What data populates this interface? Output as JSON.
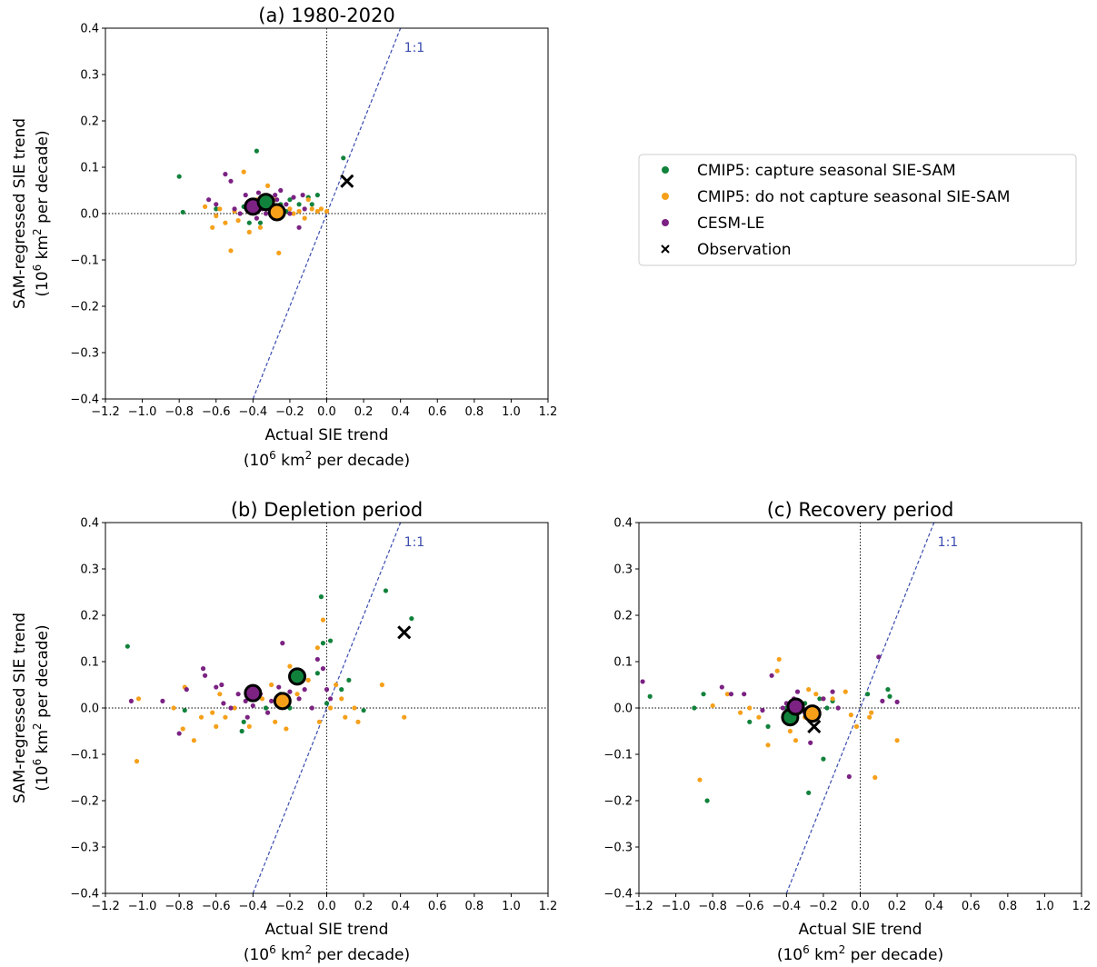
{
  "colors": {
    "cmip5_capture": "#11823b",
    "cmip5_not": "#f6a01a",
    "cesm": "#7b2283",
    "observation": "#000000",
    "one_to_one": "#3a4cb0"
  },
  "legend": {
    "items": [
      {
        "key": "cmip5_capture",
        "label": "CMIP5: capture seasonal SIE-SAM",
        "marker": "dot"
      },
      {
        "key": "cmip5_not",
        "label": "CMIP5: do not capture seasonal SIE-SAM",
        "marker": "dot"
      },
      {
        "key": "cesm",
        "label": "CESM-LE",
        "marker": "dot"
      },
      {
        "key": "observation",
        "label": "Observation",
        "marker": "cross"
      }
    ]
  },
  "axes_text": {
    "xlabel_line1": "Actual SIE trend",
    "xlabel_line2_prefix": "(10",
    "xlabel_sup": "6",
    "xlabel_line2_mid": " km",
    "xlabel_sup2": "2",
    "xlabel_line2_suffix": " per decade)",
    "ylabel_line1": "SAM-regressed SIE trend",
    "one_to_one_label": "1:1"
  },
  "chart_data": [
    {
      "id": "a",
      "type": "scatter",
      "title": "(a) 1980-2020",
      "xlim": [
        -1.2,
        1.2
      ],
      "ylim": [
        -0.4,
        0.4
      ],
      "xticks": [
        "−1.2",
        "−1.0",
        "−0.8",
        "−0.6",
        "−0.4",
        "−0.2",
        "0.0",
        "0.2",
        "0.4",
        "0.6",
        "0.8",
        "1.0",
        "1.2"
      ],
      "yticks": [
        "−0.4",
        "−0.3",
        "−0.2",
        "−0.1",
        "0.0",
        "0.1",
        "0.2",
        "0.3",
        "0.4"
      ],
      "has_ylabel": true,
      "series": [
        {
          "key": "cmip5_capture",
          "points": [
            [
              -0.8,
              0.08
            ],
            [
              -0.78,
              0.003
            ],
            [
              -0.38,
              0.135
            ],
            [
              0.09,
              0.12
            ],
            [
              -0.6,
              0.01
            ],
            [
              -0.45,
              0.015
            ],
            [
              -0.33,
              0.01
            ],
            [
              -0.25,
              0.02
            ],
            [
              -0.2,
              0.03
            ],
            [
              -0.15,
              0.02
            ],
            [
              -0.1,
              0.035
            ],
            [
              -0.08,
              0.02
            ],
            [
              -0.3,
              -0.005
            ],
            [
              -0.42,
              -0.02
            ],
            [
              -0.05,
              0.04
            ],
            [
              -0.36,
              -0.02
            ],
            [
              -0.22,
              0.005
            ]
          ]
        },
        {
          "key": "cmip5_not",
          "points": [
            [
              -0.66,
              0.015
            ],
            [
              -0.58,
              0.01
            ],
            [
              -0.52,
              -0.08
            ],
            [
              -0.42,
              -0.04
            ],
            [
              -0.45,
              0.09
            ],
            [
              -0.38,
              0.03
            ],
            [
              -0.36,
              -0.03
            ],
            [
              -0.26,
              -0.085
            ],
            [
              -0.2,
              0.01
            ],
            [
              -0.18,
              0.0
            ],
            [
              -0.15,
              0.005
            ],
            [
              -0.12,
              -0.01
            ],
            [
              -0.1,
              0.03
            ],
            [
              -0.08,
              0.01
            ],
            [
              -0.05,
              0.005
            ],
            [
              -0.03,
              0.01
            ],
            [
              0.0,
              0.005
            ],
            [
              -0.5,
              0.005
            ],
            [
              -0.55,
              -0.02
            ],
            [
              -0.6,
              -0.005
            ],
            [
              -0.32,
              0.06
            ],
            [
              -0.28,
              0.03
            ],
            [
              -0.62,
              -0.03
            ],
            [
              -0.48,
              -0.015
            ],
            [
              -0.24,
              0.0
            ]
          ]
        },
        {
          "key": "cesm",
          "points": [
            [
              -0.55,
              0.085
            ],
            [
              -0.52,
              0.07
            ],
            [
              -0.64,
              0.03
            ],
            [
              -0.6,
              0.02
            ],
            [
              -0.5,
              0.01
            ],
            [
              -0.47,
              0.0
            ],
            [
              -0.42,
              0.015
            ],
            [
              -0.4,
              0.02
            ],
            [
              -0.38,
              -0.01
            ],
            [
              -0.35,
              0.01
            ],
            [
              -0.3,
              0.02
            ],
            [
              -0.27,
              0.03
            ],
            [
              -0.25,
              0.05
            ],
            [
              -0.22,
              0.02
            ],
            [
              -0.2,
              0.0
            ],
            [
              -0.18,
              0.035
            ],
            [
              -0.13,
              0.04
            ],
            [
              -0.12,
              0.01
            ],
            [
              -0.15,
              -0.03
            ],
            [
              -0.33,
              0.0
            ],
            [
              -0.28,
              0.04
            ],
            [
              -0.44,
              0.04
            ],
            [
              -0.37,
              0.045
            ]
          ]
        }
      ],
      "means": [
        {
          "key": "cesm",
          "x": -0.4,
          "y": 0.015
        },
        {
          "key": "cmip5_capture",
          "x": -0.33,
          "y": 0.025
        },
        {
          "key": "cmip5_not",
          "x": -0.27,
          "y": 0.003
        }
      ],
      "observation": {
        "x": 0.11,
        "y": 0.07
      }
    },
    {
      "id": "b",
      "type": "scatter",
      "title": "(b) Depletion period",
      "xlim": [
        -1.2,
        1.2
      ],
      "ylim": [
        -0.4,
        0.4
      ],
      "xticks": [
        "−1.2",
        "−1.0",
        "−0.8",
        "−0.6",
        "−0.4",
        "−0.2",
        "0.0",
        "0.2",
        "0.4",
        "0.6",
        "0.8",
        "1.0",
        "1.2"
      ],
      "yticks": [
        "−0.4",
        "−0.3",
        "−0.2",
        "−0.1",
        "0.0",
        "0.1",
        "0.2",
        "0.3",
        "0.4"
      ],
      "has_ylabel": true,
      "series": [
        {
          "key": "cmip5_capture",
          "points": [
            [
              -1.08,
              0.133
            ],
            [
              -0.03,
              0.24
            ],
            [
              0.32,
              0.253
            ],
            [
              0.46,
              0.193
            ],
            [
              -0.02,
              0.14
            ],
            [
              0.02,
              0.145
            ],
            [
              0.0,
              0.01
            ],
            [
              -0.77,
              -0.005
            ],
            [
              -0.45,
              -0.03
            ],
            [
              -0.46,
              -0.05
            ],
            [
              -0.33,
              0.0
            ],
            [
              -0.25,
              0.03
            ],
            [
              -0.05,
              0.075
            ],
            [
              0.08,
              0.04
            ],
            [
              0.12,
              0.06
            ],
            [
              0.2,
              -0.005
            ],
            [
              -0.2,
              0.0
            ]
          ]
        },
        {
          "key": "cmip5_not",
          "points": [
            [
              -1.03,
              -0.115
            ],
            [
              -1.02,
              0.02
            ],
            [
              -0.83,
              0.0
            ],
            [
              -0.78,
              -0.045
            ],
            [
              -0.72,
              -0.07
            ],
            [
              -0.68,
              -0.02
            ],
            [
              -0.62,
              -0.01
            ],
            [
              -0.6,
              -0.04
            ],
            [
              -0.55,
              -0.02
            ],
            [
              -0.5,
              0.0
            ],
            [
              -0.42,
              -0.04
            ],
            [
              -0.35,
              0.02
            ],
            [
              -0.3,
              0.05
            ],
            [
              -0.28,
              -0.03
            ],
            [
              -0.22,
              -0.045
            ],
            [
              -0.2,
              0.09
            ],
            [
              -0.16,
              0.03
            ],
            [
              -0.1,
              0.06
            ],
            [
              -0.05,
              0.13
            ],
            [
              -0.02,
              0.19
            ],
            [
              0.02,
              0.0
            ],
            [
              0.05,
              0.05
            ],
            [
              0.08,
              0.02
            ],
            [
              0.1,
              -0.02
            ],
            [
              0.15,
              0.0
            ],
            [
              0.17,
              -0.03
            ],
            [
              0.3,
              0.05
            ],
            [
              0.42,
              -0.02
            ],
            [
              -0.77,
              0.045
            ],
            [
              -0.58,
              0.03
            ],
            [
              -0.04,
              -0.03
            ]
          ]
        },
        {
          "key": "cesm",
          "points": [
            [
              -1.06,
              0.015
            ],
            [
              -0.89,
              0.015
            ],
            [
              -0.8,
              -0.055
            ],
            [
              -0.76,
              0.04
            ],
            [
              -0.67,
              0.085
            ],
            [
              -0.66,
              0.07
            ],
            [
              -0.6,
              0.045
            ],
            [
              -0.57,
              0.05
            ],
            [
              -0.52,
              0.0
            ],
            [
              -0.48,
              0.03
            ],
            [
              -0.44,
              0.015
            ],
            [
              -0.4,
              0.005
            ],
            [
              -0.36,
              0.03
            ],
            [
              -0.32,
              -0.01
            ],
            [
              -0.3,
              0.015
            ],
            [
              -0.26,
              0.045
            ],
            [
              -0.24,
              0.14
            ],
            [
              -0.2,
              0.035
            ],
            [
              -0.15,
              0.02
            ],
            [
              -0.12,
              0.04
            ],
            [
              -0.08,
              0.0
            ],
            [
              -0.05,
              0.105
            ],
            [
              -0.02,
              0.085
            ],
            [
              0.0,
              0.04
            ],
            [
              0.02,
              0.02
            ],
            [
              -0.56,
              0.01
            ],
            [
              -0.43,
              -0.02
            ]
          ]
        }
      ],
      "means": [
        {
          "key": "cesm",
          "x": -0.4,
          "y": 0.032
        },
        {
          "key": "cmip5_not",
          "x": -0.24,
          "y": 0.015
        },
        {
          "key": "cmip5_capture",
          "x": -0.16,
          "y": 0.068
        }
      ],
      "observation": {
        "x": 0.42,
        "y": 0.163
      }
    },
    {
      "id": "c",
      "type": "scatter",
      "title": "(c) Recovery period",
      "xlim": [
        -1.2,
        1.2
      ],
      "ylim": [
        -0.4,
        0.4
      ],
      "xticks": [
        "−1.2",
        "−1.0",
        "−0.8",
        "−0.6",
        "−0.4",
        "−0.2",
        "0.0",
        "0.2",
        "0.4",
        "0.6",
        "0.8",
        "1.0",
        "1.2"
      ],
      "yticks": [
        "−0.4",
        "−0.3",
        "−0.2",
        "−0.1",
        "0.0",
        "0.1",
        "0.2",
        "0.3",
        "0.4"
      ],
      "has_ylabel": false,
      "series": [
        {
          "key": "cmip5_capture",
          "points": [
            [
              -1.14,
              0.025
            ],
            [
              -0.9,
              0.0
            ],
            [
              -0.85,
              0.03
            ],
            [
              -0.83,
              -0.2
            ],
            [
              -0.6,
              -0.03
            ],
            [
              -0.5,
              -0.04
            ],
            [
              -0.4,
              0.0
            ],
            [
              -0.3,
              0.01
            ],
            [
              -0.28,
              -0.183
            ],
            [
              -0.2,
              -0.11
            ],
            [
              -0.18,
              0.0
            ],
            [
              -0.15,
              0.015
            ],
            [
              0.04,
              0.03
            ],
            [
              0.15,
              0.04
            ],
            [
              0.16,
              0.025
            ],
            [
              -0.22,
              0.02
            ]
          ]
        },
        {
          "key": "cmip5_not",
          "points": [
            [
              -0.87,
              -0.155
            ],
            [
              -0.8,
              0.005
            ],
            [
              -0.72,
              0.03
            ],
            [
              -0.6,
              0.0
            ],
            [
              -0.55,
              -0.02
            ],
            [
              -0.5,
              -0.08
            ],
            [
              -0.44,
              0.105
            ],
            [
              -0.45,
              0.08
            ],
            [
              -0.38,
              -0.05
            ],
            [
              -0.35,
              -0.07
            ],
            [
              -0.3,
              -0.02
            ],
            [
              -0.28,
              0.04
            ],
            [
              -0.24,
              0.03
            ],
            [
              -0.2,
              0.02
            ],
            [
              -0.15,
              0.02
            ],
            [
              -0.08,
              0.035
            ],
            [
              -0.05,
              -0.015
            ],
            [
              0.05,
              -0.02
            ],
            [
              0.08,
              -0.15
            ],
            [
              0.2,
              -0.07
            ],
            [
              0.06,
              -0.01
            ],
            [
              -0.02,
              -0.04
            ],
            [
              -0.65,
              -0.01
            ]
          ]
        },
        {
          "key": "cesm",
          "points": [
            [
              -1.18,
              0.057
            ],
            [
              -0.75,
              0.045
            ],
            [
              -0.7,
              0.03
            ],
            [
              -0.63,
              0.03
            ],
            [
              -0.53,
              -0.005
            ],
            [
              -0.48,
              0.07
            ],
            [
              -0.42,
              0.0
            ],
            [
              -0.4,
              0.01
            ],
            [
              -0.36,
              0.02
            ],
            [
              -0.32,
              0.005
            ],
            [
              -0.3,
              -0.01
            ],
            [
              -0.27,
              -0.075
            ],
            [
              -0.25,
              -0.005
            ],
            [
              -0.2,
              0.02
            ],
            [
              -0.15,
              0.035
            ],
            [
              -0.12,
              0.0
            ],
            [
              -0.06,
              -0.148
            ],
            [
              0.1,
              0.11
            ],
            [
              0.2,
              0.013
            ],
            [
              0.12,
              0.015
            ],
            [
              -0.38,
              -0.025
            ],
            [
              -0.34,
              0.035
            ]
          ]
        }
      ],
      "means": [
        {
          "key": "cmip5_capture",
          "x": -0.38,
          "y": -0.02
        },
        {
          "key": "cesm",
          "x": -0.35,
          "y": 0.003
        },
        {
          "key": "cmip5_not",
          "x": -0.26,
          "y": -0.012
        }
      ],
      "observation": {
        "x": -0.25,
        "y": -0.04
      }
    }
  ]
}
